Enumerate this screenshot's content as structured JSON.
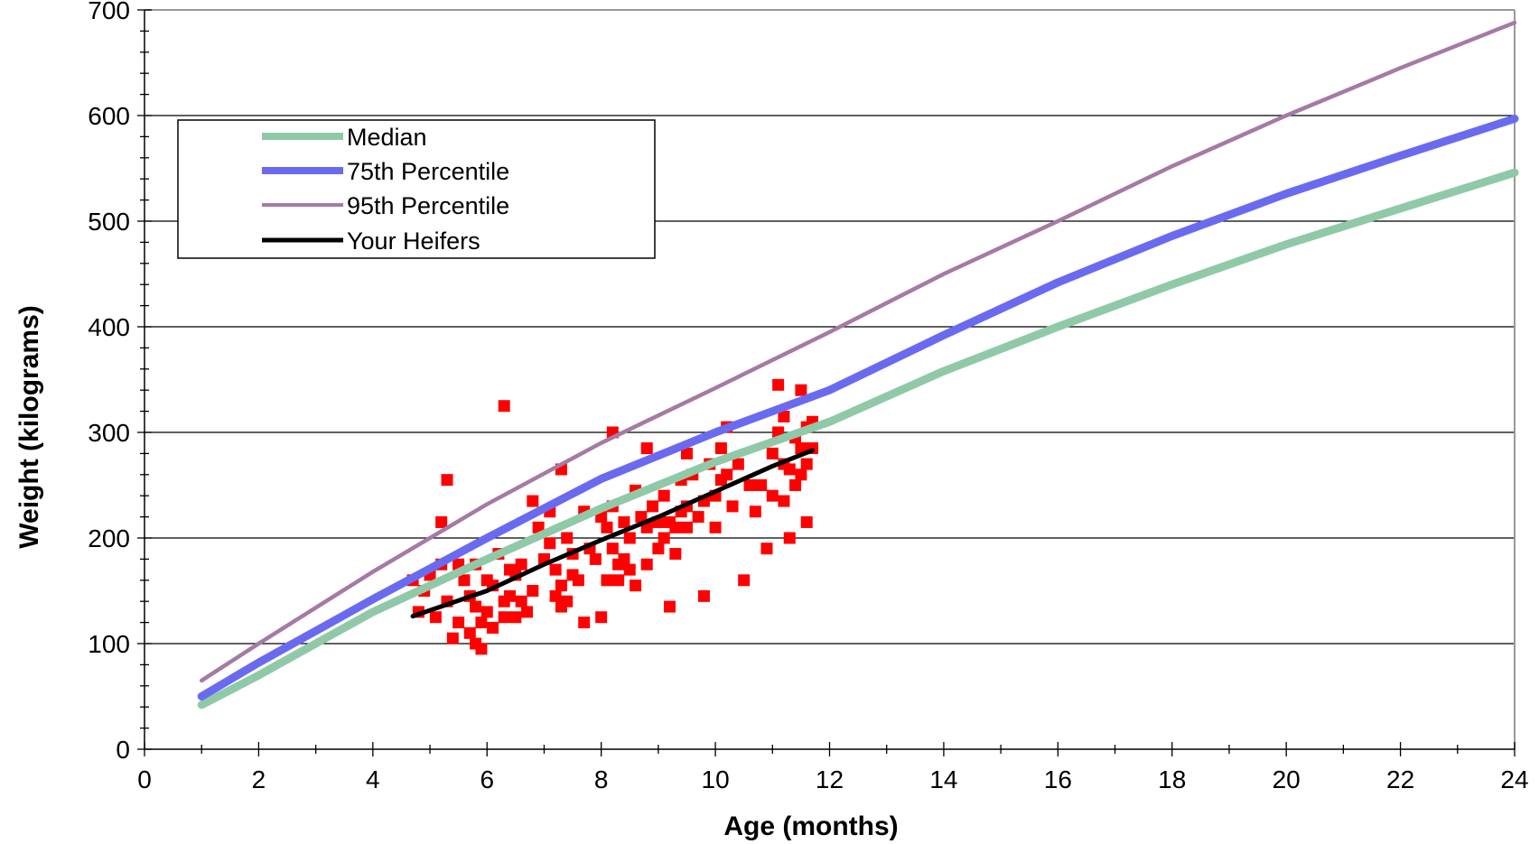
{
  "chart_data": {
    "type": "line",
    "xlabel": "Age (months)",
    "ylabel": "Weight (kilograms)",
    "xlim": [
      0,
      24
    ],
    "ylim": [
      0,
      700
    ],
    "x_ticks": [
      0,
      2,
      4,
      6,
      8,
      10,
      12,
      14,
      16,
      18,
      20,
      22,
      24
    ],
    "y_ticks": [
      0,
      100,
      200,
      300,
      400,
      500,
      600,
      700
    ],
    "grid": "horizontal",
    "legend_position": "top-left",
    "legend": [
      "Median",
      "75th Percentile",
      "95th Percentile",
      "Your Heifers"
    ],
    "colors": {
      "median": "#8fc9a8",
      "p75": "#6a6af0",
      "p95": "#a57aa5",
      "heifers": "#000000",
      "points": "#ff0000",
      "grid": "#000000",
      "border": "#999999"
    },
    "series": [
      {
        "name": "Median",
        "x": [
          1,
          2,
          4,
          6,
          8,
          10,
          12,
          14,
          16,
          18,
          20,
          22,
          24
        ],
        "y": [
          42,
          70,
          130,
          180,
          228,
          272,
          310,
          358,
          400,
          440,
          478,
          512,
          546
        ]
      },
      {
        "name": "75th Percentile",
        "x": [
          1,
          2,
          4,
          6,
          8,
          10,
          12,
          14,
          16,
          18,
          20,
          22,
          24
        ],
        "y": [
          50,
          82,
          142,
          200,
          256,
          300,
          340,
          392,
          442,
          486,
          526,
          562,
          597
        ]
      },
      {
        "name": "95th Percentile",
        "x": [
          1,
          2,
          4,
          6,
          8,
          10,
          12,
          14,
          16,
          18,
          20,
          22,
          24
        ],
        "y": [
          65,
          100,
          168,
          232,
          290,
          342,
          395,
          450,
          500,
          552,
          600,
          645,
          688
        ]
      },
      {
        "name": "Your Heifers",
        "x": [
          4.7,
          6,
          7,
          8,
          9,
          10,
          11,
          11.7
        ],
        "y": [
          126,
          150,
          175,
          198,
          220,
          244,
          268,
          283
        ]
      }
    ],
    "scatter": {
      "x": [
        4.7,
        4.8,
        4.9,
        5.0,
        5.1,
        5.2,
        5.2,
        5.3,
        5.4,
        5.5,
        5.5,
        5.6,
        5.7,
        5.7,
        5.8,
        5.8,
        5.8,
        5.9,
        5.9,
        6.0,
        6.0,
        6.1,
        6.1,
        6.2,
        6.3,
        6.3,
        6.4,
        6.4,
        6.5,
        6.5,
        6.6,
        6.6,
        6.7,
        6.8,
        6.8,
        6.9,
        7.0,
        7.1,
        7.1,
        7.2,
        7.2,
        7.3,
        7.3,
        7.4,
        7.4,
        7.5,
        7.5,
        7.6,
        7.7,
        7.7,
        7.8,
        7.9,
        8.0,
        8.0,
        8.1,
        8.1,
        8.2,
        8.2,
        8.3,
        8.3,
        8.4,
        8.4,
        8.5,
        8.5,
        8.6,
        8.6,
        8.7,
        8.8,
        8.8,
        8.9,
        9.0,
        9.0,
        9.1,
        9.1,
        9.2,
        9.2,
        9.3,
        9.3,
        9.4,
        9.4,
        9.5,
        9.5,
        9.6,
        9.7,
        9.8,
        9.8,
        9.9,
        10.0,
        10.0,
        10.1,
        10.1,
        10.2,
        10.3,
        10.4,
        10.5,
        10.6,
        10.7,
        10.8,
        10.9,
        11.0,
        11.0,
        11.1,
        11.1,
        11.2,
        11.2,
        11.3,
        11.3,
        11.4,
        11.4,
        11.5,
        11.5,
        11.6,
        11.6,
        11.7,
        11.7,
        5.3,
        6.3,
        7.3,
        8.2,
        8.8,
        9.5,
        10.2,
        11.2,
        11.5,
        11.6
      ],
      "y": [
        160,
        130,
        150,
        165,
        125,
        215,
        175,
        140,
        105,
        175,
        120,
        160,
        145,
        110,
        100,
        135,
        175,
        120,
        95,
        160,
        130,
        155,
        115,
        185,
        140,
        125,
        170,
        145,
        165,
        125,
        175,
        140,
        130,
        150,
        235,
        210,
        180,
        225,
        195,
        170,
        145,
        155,
        135,
        200,
        140,
        185,
        165,
        160,
        225,
        120,
        190,
        180,
        220,
        125,
        210,
        160,
        230,
        190,
        175,
        160,
        215,
        180,
        200,
        170,
        245,
        155,
        220,
        210,
        175,
        230,
        190,
        215,
        200,
        240,
        215,
        135,
        210,
        185,
        255,
        225,
        230,
        210,
        260,
        220,
        235,
        145,
        270,
        240,
        210,
        285,
        255,
        260,
        230,
        270,
        160,
        250,
        225,
        250,
        190,
        280,
        240,
        345,
        300,
        270,
        235,
        265,
        200,
        295,
        250,
        285,
        260,
        305,
        270,
        310,
        285,
        255,
        325,
        265,
        300,
        285,
        280,
        305,
        315,
        340,
        215
      ]
    }
  }
}
